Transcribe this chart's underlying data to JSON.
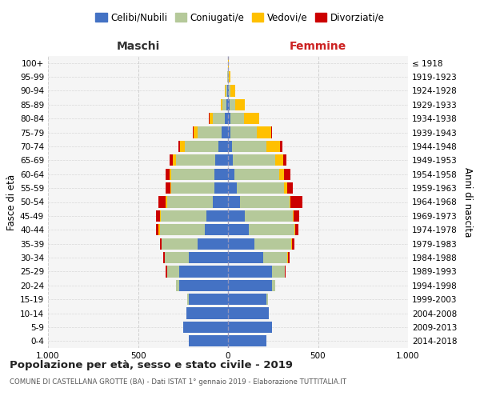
{
  "age_groups": [
    "0-4",
    "5-9",
    "10-14",
    "15-19",
    "20-24",
    "25-29",
    "30-34",
    "35-39",
    "40-44",
    "45-49",
    "50-54",
    "55-59",
    "60-64",
    "65-69",
    "70-74",
    "75-79",
    "80-84",
    "85-89",
    "90-94",
    "95-99",
    "100+"
  ],
  "birth_years": [
    "2014-2018",
    "2009-2013",
    "2004-2008",
    "1999-2003",
    "1994-1998",
    "1989-1993",
    "1984-1988",
    "1979-1983",
    "1974-1978",
    "1969-1973",
    "1964-1968",
    "1959-1963",
    "1954-1958",
    "1949-1953",
    "1944-1948",
    "1939-1943",
    "1934-1938",
    "1929-1933",
    "1924-1928",
    "1919-1923",
    "≤ 1918"
  ],
  "colors": {
    "celibi": "#4472c4",
    "coniugati": "#b5c99a",
    "vedovi": "#ffc000",
    "divorziati": "#cc0000"
  },
  "males": {
    "celibi": [
      220,
      250,
      230,
      220,
      270,
      270,
      220,
      170,
      130,
      120,
      85,
      75,
      75,
      70,
      55,
      35,
      18,
      8,
      4,
      2,
      1
    ],
    "coniugati": [
      0,
      0,
      0,
      5,
      20,
      70,
      130,
      200,
      250,
      255,
      255,
      240,
      240,
      220,
      185,
      135,
      65,
      22,
      8,
      2,
      0
    ],
    "vedovi": [
      0,
      0,
      0,
      0,
      0,
      0,
      0,
      0,
      5,
      5,
      5,
      5,
      10,
      15,
      25,
      20,
      18,
      12,
      5,
      0,
      0
    ],
    "divorziati": [
      0,
      0,
      0,
      0,
      0,
      5,
      10,
      10,
      15,
      20,
      40,
      25,
      20,
      20,
      12,
      5,
      5,
      0,
      0,
      0,
      0
    ]
  },
  "females": {
    "celibi": [
      215,
      245,
      225,
      215,
      245,
      245,
      195,
      145,
      115,
      95,
      65,
      50,
      35,
      25,
      20,
      15,
      12,
      8,
      4,
      2,
      1
    ],
    "coniugati": [
      0,
      0,
      0,
      5,
      18,
      70,
      135,
      205,
      255,
      265,
      275,
      260,
      250,
      235,
      195,
      145,
      75,
      30,
      8,
      3,
      0
    ],
    "vedovi": [
      0,
      0,
      0,
      0,
      0,
      0,
      5,
      5,
      5,
      5,
      8,
      18,
      28,
      45,
      75,
      80,
      85,
      55,
      28,
      10,
      2
    ],
    "divorziati": [
      0,
      0,
      0,
      0,
      0,
      5,
      8,
      12,
      18,
      32,
      65,
      32,
      32,
      18,
      12,
      5,
      0,
      0,
      0,
      0,
      0
    ]
  },
  "title": "Popolazione per età, sesso e stato civile - 2019",
  "subtitle": "COMUNE DI CASTELLANA GROTTE (BA) - Dati ISTAT 1° gennaio 2019 - Elaborazione TUTTITALIA.IT",
  "xlabel_left": "Maschi",
  "xlabel_right": "Femmine",
  "ylabel_left": "Fasce di età",
  "ylabel_right": "Anni di nascita",
  "xlim": 1000,
  "legend_labels": [
    "Celibi/Nubili",
    "Coniugati/e",
    "Vedovi/e",
    "Divorziati/e"
  ],
  "bg_color": "#ffffff",
  "plot_bg": "#f5f5f5",
  "grid_color": "#cccccc"
}
